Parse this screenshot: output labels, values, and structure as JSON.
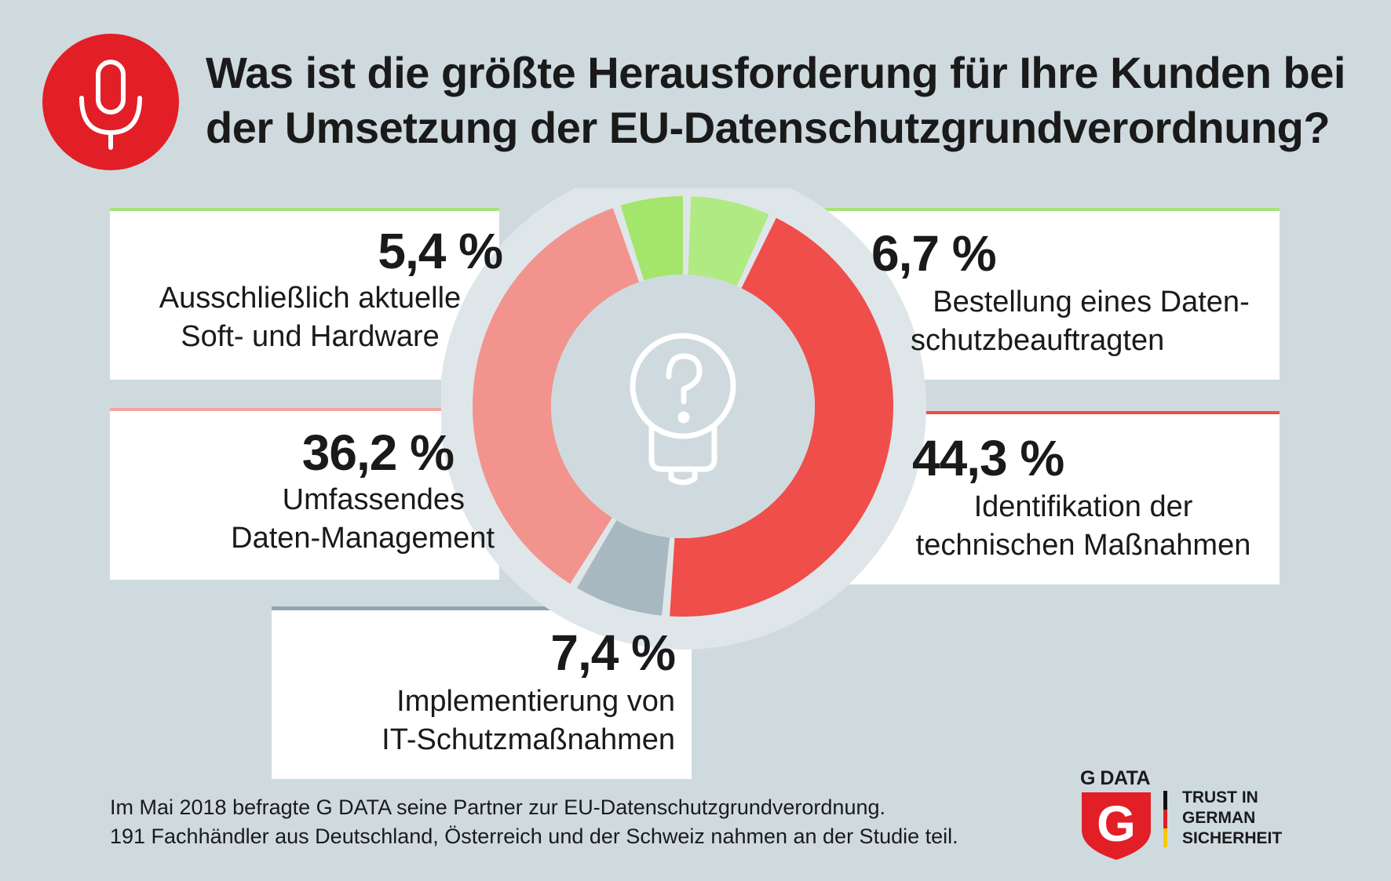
{
  "title": {
    "line1": "Was ist die größte Herausforderung für Ihre Kunden bei",
    "line2": "der Umsetzung der EU-Datenschutzgrundverordnung?"
  },
  "badge": {
    "icon": "microphone-icon",
    "color": "#e21f26"
  },
  "center_icon": "question-lightbulb-icon",
  "colors": {
    "background": "#cfdadf",
    "light_green": "#a8e27a",
    "light_red": "#f3938e",
    "red": "#ef4e4a",
    "gray": "#a8b8c0"
  },
  "chart_data": {
    "type": "pie",
    "donut": true,
    "unit": "%",
    "slices": [
      {
        "key": "s1",
        "label_lines": [
          "Bestellung  eines Daten-",
          "schutzbeauftragten"
        ],
        "display": "6,7 %",
        "value": 6.7,
        "color": "#b0ea82"
      },
      {
        "key": "s2",
        "label_lines": [
          "Identifikation der",
          "technischen Maßnahmen"
        ],
        "display": "44,3 %",
        "value": 44.3,
        "color": "#ef4e4a"
      },
      {
        "key": "s3",
        "label_lines": [
          "Implementierung von",
          "IT-Schutzmaßnahmen"
        ],
        "display": "7,4 %",
        "value": 7.4,
        "color": "#a8b8c0"
      },
      {
        "key": "s4",
        "label_lines": [
          "Umfassendes",
          "Daten-Management"
        ],
        "display": "36,2 %",
        "value": 36.2,
        "color": "#f3938e"
      },
      {
        "key": "s5",
        "label_lines": [
          "Ausschließlich aktuelle",
          "Soft- und Hardware"
        ],
        "display": "5,4 %",
        "value": 5.4,
        "color": "#a3e66b"
      }
    ]
  },
  "footnote": {
    "line1": "Im Mai 2018 befragte G DATA seine Partner zur EU-Datenschutzgrundverordnung.",
    "line2": "191 Fachhändler aus Deutschland, Österreich und der Schweiz nahmen an der Studie teil."
  },
  "logo": {
    "brand": "G DATA",
    "letter": "G",
    "slogan": [
      "TRUST IN",
      "GERMAN",
      "SICHERHEIT"
    ]
  }
}
